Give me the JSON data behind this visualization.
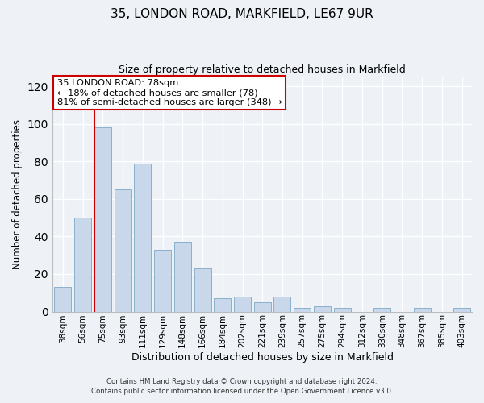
{
  "title": "35, LONDON ROAD, MARKFIELD, LE67 9UR",
  "subtitle": "Size of property relative to detached houses in Markfield",
  "xlabel": "Distribution of detached houses by size in Markfield",
  "ylabel": "Number of detached properties",
  "bar_labels": [
    "38sqm",
    "56sqm",
    "75sqm",
    "93sqm",
    "111sqm",
    "129sqm",
    "148sqm",
    "166sqm",
    "184sqm",
    "202sqm",
    "221sqm",
    "239sqm",
    "257sqm",
    "275sqm",
    "294sqm",
    "312sqm",
    "330sqm",
    "348sqm",
    "367sqm",
    "385sqm",
    "403sqm"
  ],
  "bar_values": [
    13,
    50,
    98,
    65,
    79,
    33,
    37,
    23,
    7,
    8,
    5,
    8,
    2,
    3,
    2,
    0,
    2,
    0,
    2,
    0,
    2
  ],
  "bar_color": "#c8d8ea",
  "bar_edge_color": "#8ab0cc",
  "highlight_bar_index": 2,
  "highlight_color": "#cc0000",
  "ylim": [
    0,
    125
  ],
  "yticks": [
    0,
    20,
    40,
    60,
    80,
    100,
    120
  ],
  "annotation_title": "35 LONDON ROAD: 78sqm",
  "annotation_line1": "← 18% of detached houses are smaller (78)",
  "annotation_line2": "81% of semi-detached houses are larger (348) →",
  "annotation_box_color": "#ffffff",
  "annotation_box_edge": "#cc0000",
  "footer_line1": "Contains HM Land Registry data © Crown copyright and database right 2024.",
  "footer_line2": "Contains public sector information licensed under the Open Government Licence v3.0.",
  "background_color": "#eef2f7",
  "plot_background": "#eef2f7",
  "grid_color": "#ffffff"
}
